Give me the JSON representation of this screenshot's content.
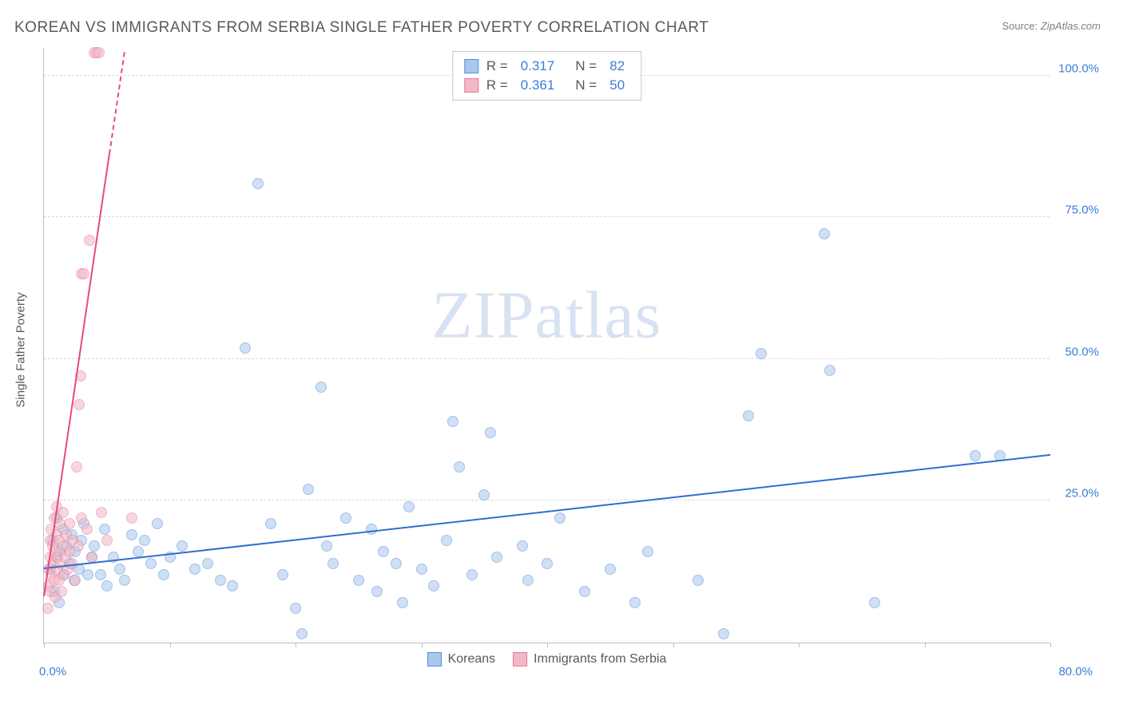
{
  "title": "KOREAN VS IMMIGRANTS FROM SERBIA SINGLE FATHER POVERTY CORRELATION CHART",
  "source_label": "Source: ",
  "source_value": "ZipAtlas.com",
  "ylabel": "Single Father Poverty",
  "watermark_a": "ZIP",
  "watermark_b": "atlas",
  "chart": {
    "type": "scatter",
    "xlim": [
      0,
      80
    ],
    "ylim": [
      0,
      105
    ],
    "x_ticks": [
      0,
      10,
      20,
      30,
      40,
      50,
      60,
      70,
      80
    ],
    "x_tick_labels": {
      "first": "0.0%",
      "last": "80.0%"
    },
    "y_gridlines": [
      25,
      50,
      75,
      100
    ],
    "y_tick_labels": [
      "25.0%",
      "50.0%",
      "75.0%",
      "100.0%"
    ],
    "background_color": "#ffffff",
    "grid_color": "#d9d9d9",
    "axis_color": "#bfbfbf",
    "label_fontsize": 15,
    "axis_label_color": "#3b7dd8",
    "point_radius": 7,
    "point_opacity": 0.55,
    "series": [
      {
        "name": "Koreans",
        "color_fill": "#a9c6ec",
        "color_stroke": "#5b8fd6",
        "r_label": "R = ",
        "r_value": "0.317",
        "n_label": "N = ",
        "n_value": "82",
        "trend": {
          "x1": 0,
          "y1": 13,
          "x2": 80,
          "y2": 33,
          "color": "#2e6fd3",
          "width": 2
        },
        "points": [
          [
            0.5,
            13
          ],
          [
            0.7,
            18
          ],
          [
            0.8,
            9
          ],
          [
            1,
            15
          ],
          [
            1,
            22
          ],
          [
            1.2,
            7
          ],
          [
            1.3,
            16
          ],
          [
            1.5,
            20
          ],
          [
            1.6,
            12
          ],
          [
            1.8,
            17
          ],
          [
            2,
            14
          ],
          [
            2.2,
            19
          ],
          [
            2.4,
            11
          ],
          [
            2.5,
            16
          ],
          [
            2.8,
            13
          ],
          [
            3,
            18
          ],
          [
            3.2,
            21
          ],
          [
            3.5,
            12
          ],
          [
            3.8,
            15
          ],
          [
            4,
            17
          ],
          [
            4.5,
            12
          ],
          [
            4.8,
            20
          ],
          [
            5,
            10
          ],
          [
            5.5,
            15
          ],
          [
            6,
            13
          ],
          [
            6.4,
            11
          ],
          [
            7,
            19
          ],
          [
            7.5,
            16
          ],
          [
            8,
            18
          ],
          [
            8.5,
            14
          ],
          [
            9,
            21
          ],
          [
            9.5,
            12
          ],
          [
            10,
            15
          ],
          [
            11,
            17
          ],
          [
            12,
            13
          ],
          [
            13,
            14
          ],
          [
            14,
            11
          ],
          [
            15,
            10
          ],
          [
            16,
            52
          ],
          [
            17,
            81
          ],
          [
            18,
            21
          ],
          [
            19,
            12
          ],
          [
            20,
            6
          ],
          [
            20.5,
            1.5
          ],
          [
            21,
            27
          ],
          [
            22,
            45
          ],
          [
            22.5,
            17
          ],
          [
            23,
            14
          ],
          [
            24,
            22
          ],
          [
            25,
            11
          ],
          [
            26,
            20
          ],
          [
            26.5,
            9
          ],
          [
            27,
            16
          ],
          [
            28,
            14
          ],
          [
            28.5,
            7
          ],
          [
            29,
            24
          ],
          [
            30,
            13
          ],
          [
            31,
            10
          ],
          [
            32,
            18
          ],
          [
            32.5,
            39
          ],
          [
            33,
            31
          ],
          [
            34,
            12
          ],
          [
            35,
            26
          ],
          [
            35.5,
            37
          ],
          [
            36,
            15
          ],
          [
            38,
            17
          ],
          [
            38.5,
            11
          ],
          [
            40,
            14
          ],
          [
            41,
            22
          ],
          [
            43,
            9
          ],
          [
            45,
            13
          ],
          [
            47,
            7
          ],
          [
            48,
            16
          ],
          [
            52,
            11
          ],
          [
            54,
            1.5
          ],
          [
            56,
            40
          ],
          [
            57,
            51
          ],
          [
            62,
            72
          ],
          [
            62.5,
            48
          ],
          [
            66,
            7
          ],
          [
            74,
            33
          ],
          [
            76,
            33
          ]
        ]
      },
      {
        "name": "Immigrants from Serbia",
        "color_fill": "#f2b8c6",
        "color_stroke": "#e77a95",
        "r_label": "R = ",
        "r_value": "0.361",
        "n_label": "N = ",
        "n_value": "50",
        "trend": {
          "x1": 0,
          "y1": 8,
          "x2": 5.2,
          "y2": 86,
          "color": "#e94a7a",
          "width": 2,
          "dash_extend_to_y": 104
        },
        "points": [
          [
            0.3,
            6
          ],
          [
            0.4,
            10
          ],
          [
            0.4,
            13
          ],
          [
            0.5,
            9
          ],
          [
            0.5,
            15
          ],
          [
            0.5,
            18
          ],
          [
            0.6,
            12
          ],
          [
            0.6,
            20
          ],
          [
            0.7,
            14
          ],
          [
            0.7,
            17
          ],
          [
            0.8,
            11
          ],
          [
            0.8,
            22
          ],
          [
            0.9,
            8
          ],
          [
            0.9,
            16
          ],
          [
            1,
            13
          ],
          [
            1,
            19
          ],
          [
            1,
            24
          ],
          [
            1.1,
            15
          ],
          [
            1.2,
            11
          ],
          [
            1.2,
            18
          ],
          [
            1.3,
            21
          ],
          [
            1.3,
            14
          ],
          [
            1.4,
            9
          ],
          [
            1.5,
            17
          ],
          [
            1.5,
            23
          ],
          [
            1.6,
            12
          ],
          [
            1.7,
            15
          ],
          [
            1.8,
            19
          ],
          [
            1.9,
            13
          ],
          [
            2,
            16
          ],
          [
            2,
            21
          ],
          [
            2.2,
            14
          ],
          [
            2.3,
            18
          ],
          [
            2.5,
            11
          ],
          [
            2.6,
            31
          ],
          [
            2.7,
            17
          ],
          [
            2.8,
            42
          ],
          [
            2.9,
            47
          ],
          [
            3,
            22
          ],
          [
            3,
            65
          ],
          [
            3.2,
            65
          ],
          [
            3.4,
            20
          ],
          [
            3.6,
            71
          ],
          [
            3.8,
            15
          ],
          [
            4,
            104
          ],
          [
            4.2,
            104
          ],
          [
            4.4,
            104
          ],
          [
            4.6,
            23
          ],
          [
            5,
            18
          ],
          [
            7,
            22
          ]
        ]
      }
    ]
  }
}
